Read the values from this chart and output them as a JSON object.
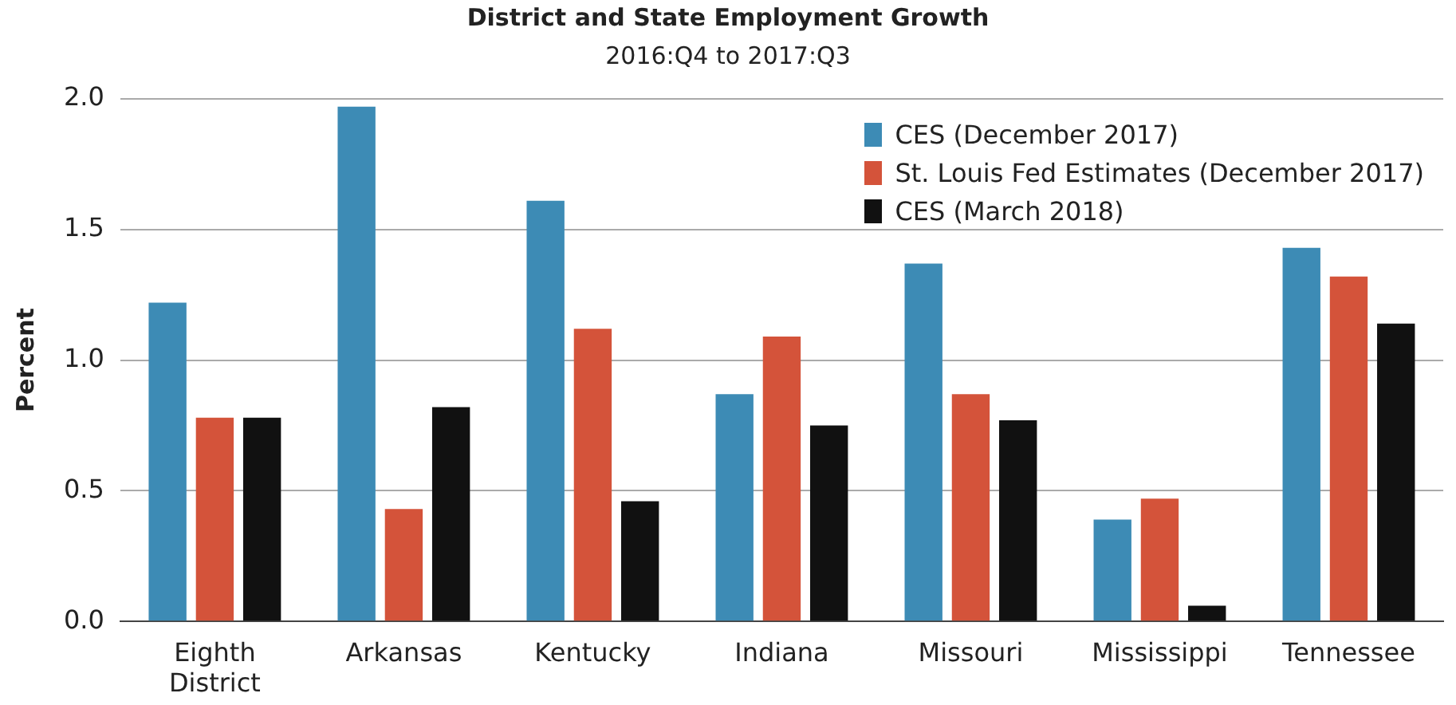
{
  "chart_data": {
    "type": "bar",
    "title": "District and State Employment Growth",
    "subtitle": "2016:Q4 to 2017:Q3",
    "ylabel": "Percent",
    "categories": [
      "Eighth District",
      "Arkansas",
      "Kentucky",
      "Indiana",
      "Missouri",
      "Mississippi",
      "Tennessee"
    ],
    "series": [
      {
        "name": "CES (December 2017)",
        "color": "#3d8bb5",
        "values": [
          1.22,
          1.97,
          1.61,
          0.87,
          1.37,
          0.39,
          1.43
        ]
      },
      {
        "name": "St. Louis Fed Estimates (December 2017)",
        "color": "#d4533a",
        "values": [
          0.78,
          0.43,
          1.12,
          1.09,
          0.87,
          0.47,
          1.32
        ]
      },
      {
        "name": "CES (March 2018)",
        "color": "#111111",
        "values": [
          0.78,
          0.82,
          0.46,
          0.75,
          0.77,
          0.06,
          1.14
        ]
      }
    ],
    "ylim": [
      0,
      2
    ],
    "yticks": [
      {
        "value": 0,
        "label": "0.0"
      },
      0.5,
      {
        "value": 1,
        "label": "1.0"
      },
      1.5,
      {
        "value": 2,
        "label": "2.0"
      }
    ],
    "grid": "y",
    "legend": "top right"
  }
}
